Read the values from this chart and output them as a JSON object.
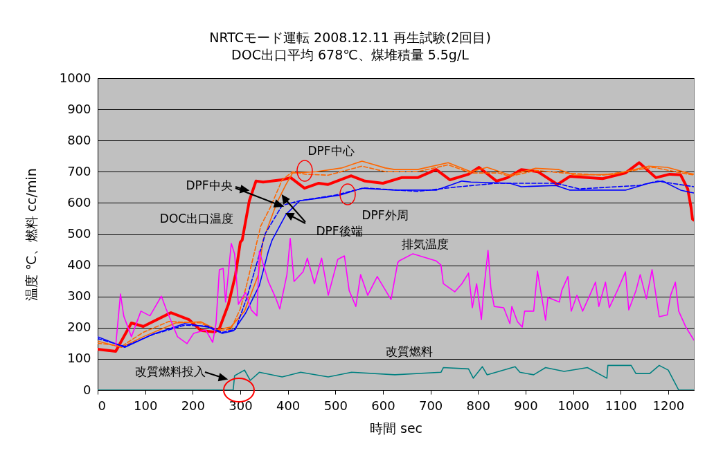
{
  "chart_data": {
    "type": "line",
    "title": "NRTCモード運転 2008.12.11 再生試験(2回目)",
    "subtitle": "DOC出口平均 678℃、煤堆積量 5.5g/L",
    "xlabel": "時間 sec",
    "ylabel": "温度 ℃、燃料 cc/min",
    "xlim": [
      0,
      1254
    ],
    "xticks": [
      0,
      100,
      200,
      300,
      400,
      500,
      600,
      700,
      800,
      900,
      1000,
      1100,
      1200
    ],
    "ylim": [
      0,
      1000
    ],
    "yticks": [
      0,
      100,
      200,
      300,
      400,
      500,
      600,
      700,
      800,
      900,
      1000
    ],
    "grid": "y",
    "marker": "none",
    "series": [
      {
        "color": "#ff0000",
        "line_style": "solid",
        "x": [
          0,
          38,
          71,
          96,
          154,
          192,
          217,
          246,
          256,
          275,
          290,
          300,
          304,
          319,
          333,
          348,
          387,
          406,
          435,
          465,
          484,
          533,
          562,
          600,
          639,
          673,
          712,
          741,
          780,
          802,
          839,
          862,
          891,
          926,
          967,
          993,
          1062,
          1110,
          1139,
          1174,
          1203,
          1226,
          1241,
          1248,
          1251,
          1254
        ],
        "values": [
          131,
          124,
          215,
          204,
          248,
          226,
          191,
          186,
          197,
          275,
          370,
          474,
          481,
          607,
          670,
          667,
          674,
          681,
          647,
          663,
          659,
          687,
          670,
          663,
          681,
          681,
          707,
          674,
          692,
          714,
          670,
          681,
          707,
          700,
          659,
          685,
          678,
          696,
          729,
          681,
          692,
          690,
          645,
          585,
          548,
          545
        ]
      },
      {
        "color": "#ff6600",
        "line_style": "solid",
        "x": [
          0,
          50,
          96,
          164,
          217,
          251,
          280,
          309,
          338,
          348,
          377,
          396,
          410,
          460,
          513,
          556,
          605,
          625,
          673,
          737,
          785,
          819,
          867,
          921,
          970,
          1003,
          1086,
          1159,
          1198,
          1241,
          1254
        ],
        "values": [
          157,
          137,
          171,
          215,
          219,
          193,
          202,
          253,
          370,
          481,
          601,
          659,
          696,
          700,
          712,
          734,
          712,
          707,
          707,
          729,
          700,
          714,
          689,
          711,
          707,
          689,
          692,
          718,
          714,
          696,
          692
        ]
      },
      {
        "color": "#ff6600",
        "line_style": "dashed",
        "x": [
          0,
          30,
          50,
          96,
          150,
          217,
          250,
          280,
          300,
          313,
          343,
          363,
          388,
          410,
          437,
          485,
          556,
          605,
          673,
          737,
          785,
          843,
          867,
          921,
          979,
          1062,
          1169,
          1241,
          1254
        ],
        "values": [
          150,
          145,
          140,
          185,
          220,
          215,
          190,
          195,
          260,
          335,
          526,
          585,
          674,
          700,
          692,
          689,
          718,
          700,
          700,
          722,
          696,
          696,
          685,
          704,
          696,
          689,
          714,
          692,
          690
        ]
      },
      {
        "color": "#0000ff",
        "line_style": "solid",
        "x": [
          0,
          57,
          116,
          183,
          232,
          262,
          286,
          311,
          340,
          359,
          367,
          396,
          425,
          460,
          509,
          556,
          625,
          712,
          766,
          785,
          867,
          891,
          964,
          993,
          1110,
          1159,
          1188,
          1226,
          1246,
          1254
        ],
        "values": [
          171,
          137,
          179,
          213,
          202,
          182,
          190,
          246,
          335,
          445,
          481,
          563,
          607,
          614,
          625,
          647,
          641,
          641,
          670,
          667,
          663,
          652,
          656,
          641,
          641,
          663,
          670,
          641,
          634,
          632
        ]
      },
      {
        "color": "#0000ff",
        "line_style": "dashed",
        "x": [
          0,
          57,
          116,
          183,
          232,
          262,
          290,
          314,
          353,
          388,
          425,
          500,
          560,
          673,
          761,
          839,
          964,
          1013,
          1139,
          1178,
          1236,
          1254
        ],
        "values": [
          165,
          140,
          178,
          208,
          205,
          185,
          195,
          297,
          503,
          592,
          607,
          625,
          648,
          637,
          652,
          663,
          663,
          645,
          656,
          670,
          656,
          652
        ]
      },
      {
        "color": "#ff00ff",
        "line_style": "solid",
        "x": [
          38,
          48,
          55,
          71,
          91,
          110,
          120,
          134,
          144,
          168,
          188,
          202,
          227,
          242,
          249,
          256,
          264,
          269,
          281,
          288,
          296,
          311,
          323,
          335,
          340,
          359,
          374,
          383,
          398,
          405,
          413,
          432,
          441,
          456,
          471,
          485,
          505,
          519,
          529,
          543,
          553,
          568,
          588,
          617,
          631,
          634,
          663,
          712,
          722,
          727,
          751,
          766,
          780,
          788,
          797,
          807,
          812,
          821,
          827,
          834,
          854,
          867,
          871,
          883,
          893,
          898,
          917,
          925,
          942,
          947,
          971,
          976,
          989,
          996,
          1008,
          1020,
          1035,
          1047,
          1054,
          1068,
          1076,
          1093,
          1110,
          1117,
          1132,
          1141,
          1154,
          1166,
          1181,
          1198,
          1205,
          1215,
          1222,
          1237,
          1254
        ],
        "values": [
          142,
          308,
          237,
          171,
          253,
          238,
          264,
          301,
          260,
          171,
          149,
          182,
          193,
          153,
          215,
          386,
          390,
          282,
          470,
          437,
          275,
          313,
          257,
          238,
          445,
          348,
          297,
          260,
          370,
          486,
          348,
          379,
          423,
          341,
          423,
          304,
          419,
          430,
          319,
          268,
          370,
          304,
          364,
          290,
          408,
          414,
          437,
          414,
          401,
          341,
          315,
          341,
          375,
          264,
          341,
          226,
          319,
          448,
          326,
          268,
          264,
          213,
          268,
          219,
          202,
          253,
          253,
          381,
          224,
          297,
          282,
          319,
          364,
          253,
          304,
          253,
          304,
          346,
          268,
          346,
          264,
          319,
          379,
          257,
          318,
          370,
          293,
          386,
          235,
          241,
          304,
          346,
          253,
          202,
          160
        ]
      },
      {
        "color": "#008080",
        "line_style": "solid",
        "x": [
          0,
          285,
          288,
          309,
          321,
          340,
          388,
          427,
          485,
          534,
          625,
          722,
          727,
          780,
          790,
          809,
          819,
          878,
          888,
          917,
          942,
          981,
          1030,
          1071,
          1073,
          1122,
          1132,
          1161,
          1181,
          1200,
          1222,
          1254
        ],
        "values": [
          0,
          0,
          46,
          64,
          31,
          57,
          42,
          57,
          42,
          57,
          49,
          57,
          72,
          68,
          38,
          75,
          49,
          75,
          57,
          49,
          72,
          60,
          72,
          38,
          79,
          79,
          53,
          53,
          79,
          64,
          0,
          0
        ]
      }
    ],
    "annotations": [
      "DPF中心",
      "DPF中央",
      "DOC出口温度",
      "DPF後端",
      "DPF外周",
      "排気温度",
      "改質燃料",
      "改質燃料投入"
    ]
  }
}
